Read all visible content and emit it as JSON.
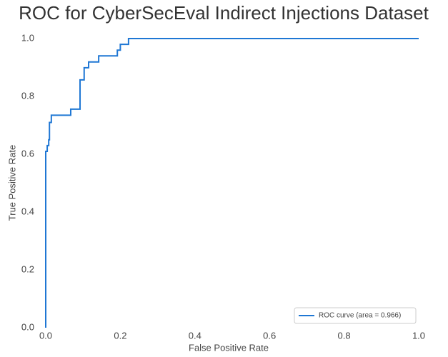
{
  "chart_data": {
    "type": "line",
    "title": "ROC for CyberSecEval Indirect Injections Dataset",
    "x_label": "False Positive Rate",
    "y_label": "True Positive Rate",
    "xlim": [
      0,
      1
    ],
    "ylim": [
      0,
      1
    ],
    "xticks": [
      {
        "value": 0,
        "label": "0.0"
      },
      0.2,
      0.4,
      0.6,
      0.8,
      {
        "value": 1,
        "label": "1.0"
      }
    ],
    "yticks": [
      {
        "value": 0,
        "label": "0.0"
      },
      0.2,
      0.4,
      0.6,
      0.8,
      {
        "value": 1,
        "label": "1.0"
      }
    ],
    "legend": "lower right",
    "series": [
      {
        "name": "ROC curve (area = 0.966)",
        "color": "#1f77d4",
        "x": [
          0,
          0,
          0.004,
          0.004,
          0.008,
          0.008,
          0.01,
          0.01,
          0.015,
          0.015,
          0.067,
          0.067,
          0.092,
          0.092,
          0.103,
          0.103,
          0.115,
          0.115,
          0.142,
          0.142,
          0.192,
          0.192,
          0.2,
          0.2,
          0.222,
          0.222,
          1
        ],
        "values": [
          0,
          0.61,
          0.61,
          0.63,
          0.63,
          0.65,
          0.65,
          0.71,
          0.71,
          0.735,
          0.735,
          0.756,
          0.756,
          0.857,
          0.857,
          0.899,
          0.899,
          0.919,
          0.919,
          0.94,
          0.94,
          0.96,
          0.96,
          0.98,
          0.98,
          1,
          1
        ]
      }
    ]
  }
}
